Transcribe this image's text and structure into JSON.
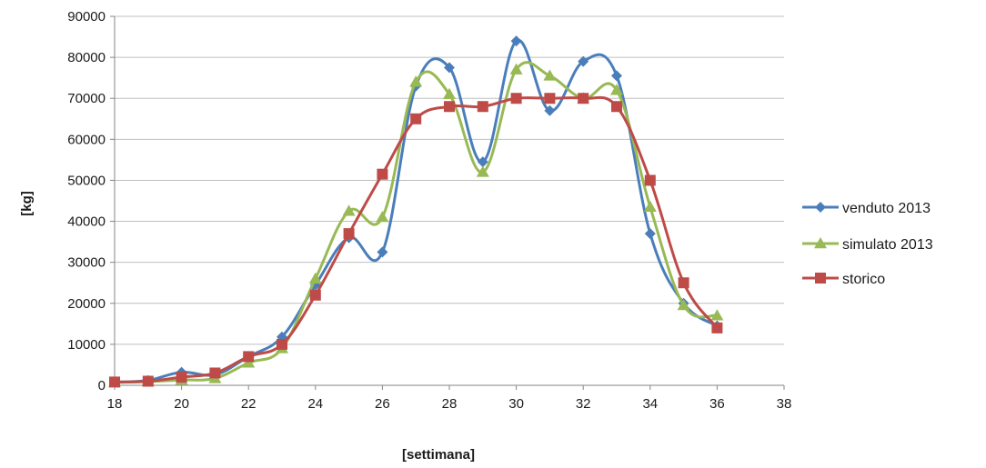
{
  "chart_data": {
    "type": "line",
    "xlabel": "[settimana]",
    "ylabel": "[kg]",
    "xlim": [
      18,
      38
    ],
    "ylim": [
      0,
      90000
    ],
    "x_ticks": [
      18,
      20,
      22,
      24,
      26,
      28,
      30,
      32,
      34,
      36,
      38
    ],
    "y_ticks": [
      0,
      10000,
      20000,
      30000,
      40000,
      50000,
      60000,
      70000,
      80000,
      90000
    ],
    "grid": "horizontal",
    "legend_position": "right",
    "series": [
      {
        "name": "venduto 2013",
        "color": "#4a7ebb",
        "marker": "diamond",
        "x": [
          18,
          19,
          20,
          21,
          22,
          23,
          24,
          25,
          26,
          27,
          28,
          29,
          30,
          31,
          32,
          33,
          34,
          35,
          36
        ],
        "y": [
          800,
          1200,
          3200,
          2600,
          7000,
          11800,
          24500,
          36000,
          32500,
          73000,
          77500,
          54500,
          84000,
          67000,
          79000,
          75500,
          37000,
          20000,
          14500
        ]
      },
      {
        "name": "simulato 2013",
        "color": "#98b954",
        "marker": "triangle",
        "x": [
          18,
          19,
          20,
          21,
          22,
          23,
          24,
          25,
          26,
          27,
          28,
          29,
          30,
          31,
          32,
          33,
          34,
          35,
          36
        ],
        "y": [
          700,
          900,
          1300,
          1700,
          5500,
          9000,
          26000,
          42500,
          41000,
          74000,
          71000,
          52000,
          77000,
          75500,
          70000,
          72000,
          43500,
          19500,
          17000
        ]
      },
      {
        "name": "storico",
        "color": "#be4b48",
        "marker": "square",
        "x": [
          18,
          19,
          20,
          21,
          22,
          23,
          24,
          25,
          26,
          27,
          28,
          29,
          30,
          31,
          32,
          33,
          34,
          35,
          36
        ],
        "y": [
          800,
          1000,
          2000,
          3000,
          7000,
          10000,
          22000,
          37000,
          51500,
          65000,
          68000,
          68000,
          70000,
          70000,
          70000,
          68000,
          50000,
          25000,
          14000
        ]
      }
    ]
  }
}
